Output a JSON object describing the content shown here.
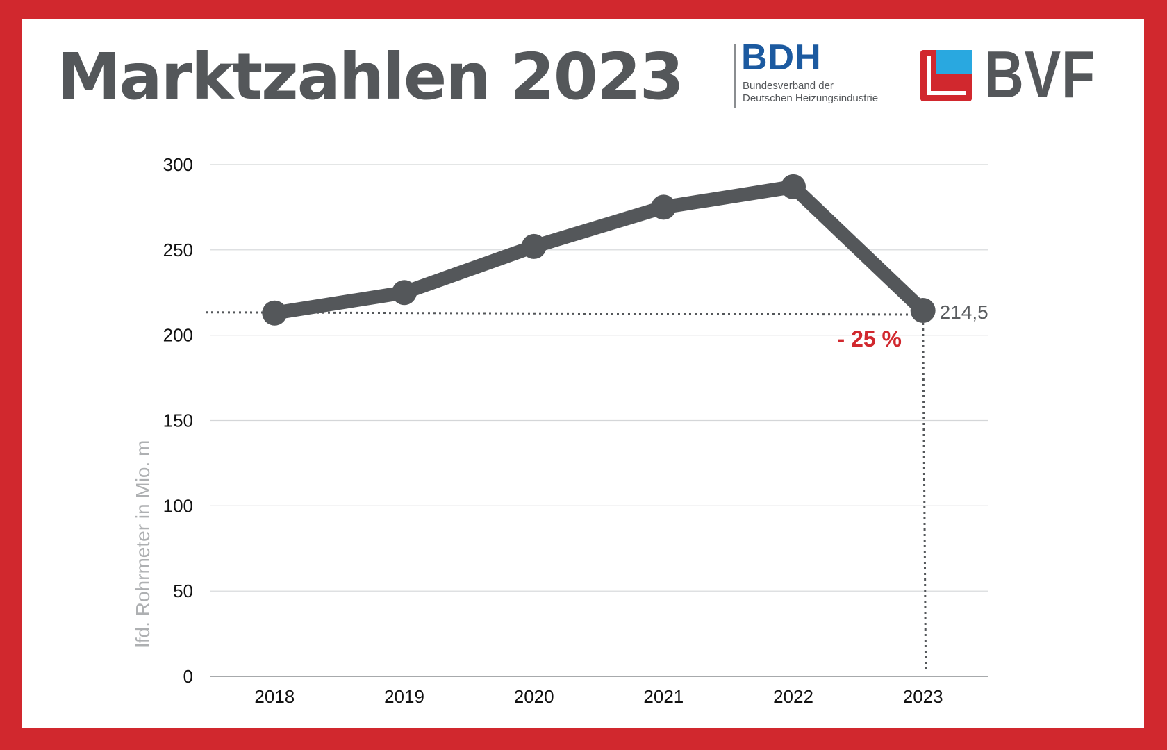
{
  "title": "Marktzahlen 2023",
  "logos": {
    "bdh": {
      "word": "BDH",
      "line1": "Bundesverband der",
      "line2": "Deutschen Heizungsindustrie"
    },
    "bvf": {
      "word": "BVF"
    }
  },
  "colors": {
    "frame": "#d1282e",
    "line": "#54575a",
    "accent": "#d1282e",
    "bdh_blue": "#1c5aa0",
    "bvf_blue": "#29a8e0"
  },
  "chart_data": {
    "type": "line",
    "categories": [
      "2018",
      "2019",
      "2020",
      "2021",
      "2022",
      "2023"
    ],
    "values": [
      213,
      225,
      252,
      275,
      287,
      214.5
    ],
    "ylabel": "lfd. Rohrmeter in Mio. m",
    "ylim": [
      0,
      300
    ],
    "yticks": [
      "0",
      "50",
      "100",
      "150",
      "200",
      "250",
      "300"
    ],
    "grid": true,
    "value_label": "214,5",
    "annotation": "- 25 %"
  }
}
